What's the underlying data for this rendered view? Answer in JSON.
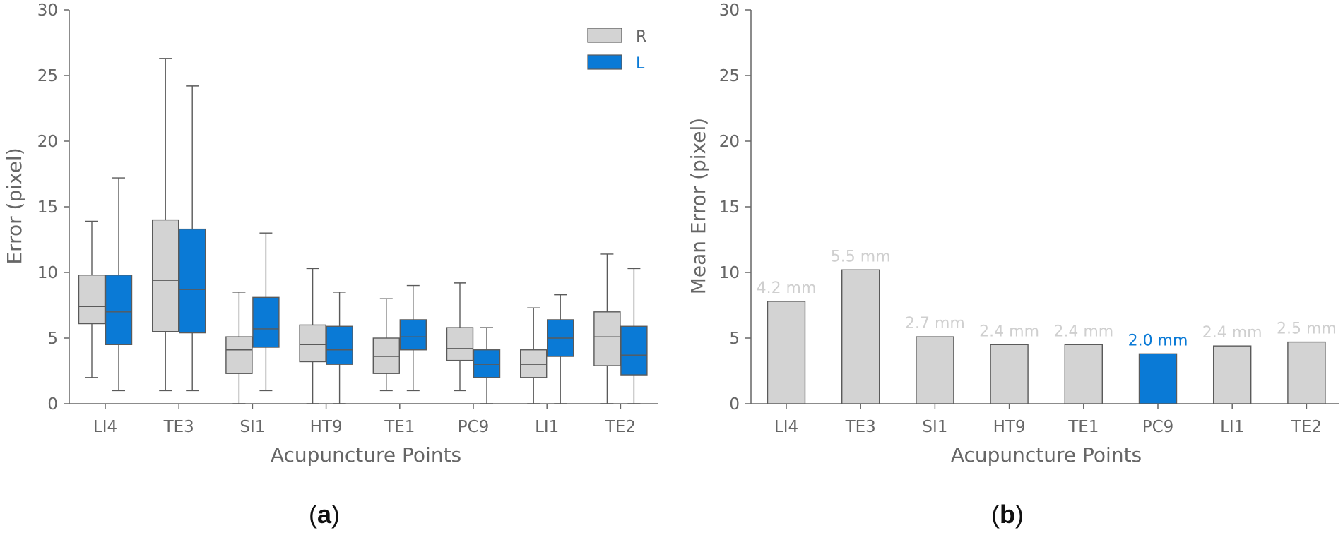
{
  "colors": {
    "R": "#d3d3d3",
    "L": "#0a7ad6",
    "axis": "#666666",
    "box_stroke": "#5a5a5a",
    "label_grey": "#cfcfcf"
  },
  "chart_data": [
    {
      "type": "box",
      "panel": "(a)",
      "panel_parts": {
        "open": "(",
        "letter": "a",
        "close": ")"
      },
      "xlabel": "Acupuncture Points",
      "ylabel": "Error (pixel)",
      "ylim": [
        0,
        30
      ],
      "yticks": [
        "0",
        "5",
        "10",
        "15",
        "20",
        "25",
        "30"
      ],
      "categories": [
        "LI4",
        "TE3",
        "SI1",
        "HT9",
        "TE1",
        "PC9",
        "LI1",
        "TE2"
      ],
      "legend": {
        "position": "top-right",
        "entries": [
          "R",
          "L"
        ]
      },
      "series": [
        {
          "name": "R",
          "stats": [
            {
              "min": 2.0,
              "q1": 6.1,
              "median": 7.4,
              "q3": 9.8,
              "max": 13.9
            },
            {
              "min": 1.0,
              "q1": 5.5,
              "median": 9.4,
              "q3": 14.0,
              "max": 26.3
            },
            {
              "min": 0.0,
              "q1": 2.3,
              "median": 4.1,
              "q3": 5.1,
              "max": 8.5
            },
            {
              "min": 0.0,
              "q1": 3.2,
              "median": 4.5,
              "q3": 6.0,
              "max": 10.3
            },
            {
              "min": 1.0,
              "q1": 2.3,
              "median": 3.6,
              "q3": 5.0,
              "max": 8.0
            },
            {
              "min": 1.0,
              "q1": 3.3,
              "median": 4.2,
              "q3": 5.8,
              "max": 9.2
            },
            {
              "min": 0.0,
              "q1": 2.0,
              "median": 3.0,
              "q3": 4.1,
              "max": 7.3
            },
            {
              "min": 0.0,
              "q1": 2.9,
              "median": 5.1,
              "q3": 7.0,
              "max": 11.4
            }
          ]
        },
        {
          "name": "L",
          "stats": [
            {
              "min": 1.0,
              "q1": 4.5,
              "median": 7.0,
              "q3": 9.8,
              "max": 17.2
            },
            {
              "min": 1.0,
              "q1": 5.4,
              "median": 8.7,
              "q3": 13.3,
              "max": 24.2
            },
            {
              "min": 1.0,
              "q1": 4.3,
              "median": 5.7,
              "q3": 8.1,
              "max": 13.0
            },
            {
              "min": 0.0,
              "q1": 3.0,
              "median": 4.1,
              "q3": 5.9,
              "max": 8.5
            },
            {
              "min": 1.0,
              "q1": 4.1,
              "median": 5.1,
              "q3": 6.4,
              "max": 9.0
            },
            {
              "min": 0.0,
              "q1": 2.0,
              "median": 3.0,
              "q3": 4.1,
              "max": 5.8
            },
            {
              "min": 0.0,
              "q1": 3.6,
              "median": 5.0,
              "q3": 6.4,
              "max": 8.3
            },
            {
              "min": 0.0,
              "q1": 2.2,
              "median": 3.7,
              "q3": 5.9,
              "max": 10.3
            }
          ]
        }
      ]
    },
    {
      "type": "bar",
      "panel": "(b)",
      "panel_parts": {
        "open": "(",
        "letter": "b",
        "close": ")"
      },
      "xlabel": "Acupuncture Points",
      "ylabel": "Mean Error (pixel)",
      "ylim": [
        0,
        30
      ],
      "yticks": [
        "0",
        "5",
        "10",
        "15",
        "20",
        "25",
        "30"
      ],
      "categories": [
        "LI4",
        "TE3",
        "SI1",
        "HT9",
        "TE1",
        "PC9",
        "LI1",
        "TE2"
      ],
      "values": [
        7.8,
        10.2,
        5.1,
        4.5,
        4.5,
        3.8,
        4.4,
        4.7
      ],
      "labels": [
        "4.2 mm",
        "5.5 mm",
        "2.7 mm",
        "2.4 mm",
        "2.4 mm",
        "2.0 mm",
        "2.4 mm",
        "2.5 mm"
      ],
      "highlight_index": 5
    }
  ]
}
